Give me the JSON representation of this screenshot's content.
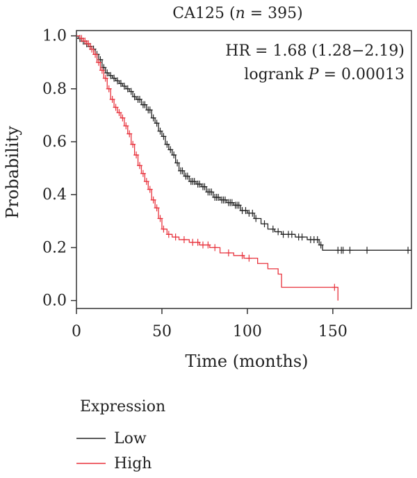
{
  "chart_data": {
    "type": "line",
    "title_prefix": "CA125 (",
    "title_n": "n",
    "title_suffix": " = 395)",
    "xlabel": "Time (months)",
    "ylabel": "Probability",
    "xlim": [
      0,
      196
    ],
    "ylim": [
      -0.03,
      1.02
    ],
    "xticks": [
      "0",
      "50",
      "100",
      "150"
    ],
    "xtick_values": [
      0,
      50,
      100,
      150
    ],
    "yticks": [
      "0.0",
      "0.2",
      "0.4",
      "0.6",
      "0.8",
      "1.0"
    ],
    "ytick_values": [
      0.0,
      0.2,
      0.4,
      0.6,
      0.8,
      1.0
    ],
    "annotation_hr": "HR = 1.68 (1.28−2.19)",
    "annotation_p_prefix": "logrank ",
    "annotation_p_italic": "P",
    "annotation_p_suffix": " = 0.00013",
    "legend_title": "Expression",
    "grid": false,
    "series": [
      {
        "name": "Low",
        "color": "#222222",
        "steps": [
          [
            0,
            1.0
          ],
          [
            1,
            0.99
          ],
          [
            3,
            0.98
          ],
          [
            5,
            0.97
          ],
          [
            7,
            0.96
          ],
          [
            9,
            0.95
          ],
          [
            11,
            0.93
          ],
          [
            13,
            0.91
          ],
          [
            15,
            0.88
          ],
          [
            17,
            0.86
          ],
          [
            19,
            0.85
          ],
          [
            21,
            0.84
          ],
          [
            23,
            0.83
          ],
          [
            25,
            0.82
          ],
          [
            27,
            0.81
          ],
          [
            29,
            0.8
          ],
          [
            31,
            0.79
          ],
          [
            33,
            0.77
          ],
          [
            35,
            0.76
          ],
          [
            38,
            0.74
          ],
          [
            41,
            0.72
          ],
          [
            44,
            0.69
          ],
          [
            46,
            0.67
          ],
          [
            48,
            0.64
          ],
          [
            50,
            0.62
          ],
          [
            52,
            0.59
          ],
          [
            54,
            0.57
          ],
          [
            56,
            0.55
          ],
          [
            58,
            0.52
          ],
          [
            60,
            0.49
          ],
          [
            63,
            0.47
          ],
          [
            66,
            0.45
          ],
          [
            70,
            0.44
          ],
          [
            73,
            0.43
          ],
          [
            76,
            0.41
          ],
          [
            80,
            0.39
          ],
          [
            84,
            0.38
          ],
          [
            88,
            0.37
          ],
          [
            92,
            0.36
          ],
          [
            96,
            0.34
          ],
          [
            100,
            0.33
          ],
          [
            104,
            0.31
          ],
          [
            108,
            0.29
          ],
          [
            112,
            0.27
          ],
          [
            116,
            0.26
          ],
          [
            120,
            0.25
          ],
          [
            128,
            0.24
          ],
          [
            135,
            0.23
          ],
          [
            142,
            0.21
          ],
          [
            144,
            0.19
          ],
          [
            196,
            0.19
          ]
        ],
        "censor_x": [
          2,
          4,
          6,
          8,
          10,
          12,
          14,
          16,
          18,
          20,
          22,
          24,
          26,
          28,
          30,
          32,
          34,
          36,
          37,
          39,
          40,
          42,
          43,
          45,
          47,
          49,
          51,
          53,
          55,
          57,
          59,
          61,
          62,
          64,
          65,
          67,
          68,
          69,
          71,
          72,
          74,
          75,
          77,
          78,
          79,
          81,
          82,
          83,
          85,
          86,
          87,
          89,
          90,
          91,
          93,
          94,
          95,
          97,
          99,
          101,
          103,
          105,
          110,
          115,
          118,
          121,
          124,
          126,
          130,
          132,
          137,
          139,
          141,
          143,
          153,
          155,
          156,
          160,
          170,
          194
        ]
      },
      {
        "name": "High",
        "color": "#e8323c",
        "steps": [
          [
            0,
            1.0
          ],
          [
            2,
            0.99
          ],
          [
            4,
            0.98
          ],
          [
            6,
            0.97
          ],
          [
            8,
            0.95
          ],
          [
            10,
            0.93
          ],
          [
            12,
            0.9
          ],
          [
            14,
            0.87
          ],
          [
            16,
            0.84
          ],
          [
            18,
            0.8
          ],
          [
            20,
            0.76
          ],
          [
            22,
            0.73
          ],
          [
            24,
            0.71
          ],
          [
            26,
            0.69
          ],
          [
            28,
            0.66
          ],
          [
            30,
            0.63
          ],
          [
            32,
            0.59
          ],
          [
            34,
            0.55
          ],
          [
            36,
            0.51
          ],
          [
            38,
            0.48
          ],
          [
            40,
            0.45
          ],
          [
            42,
            0.42
          ],
          [
            44,
            0.38
          ],
          [
            46,
            0.35
          ],
          [
            48,
            0.31
          ],
          [
            50,
            0.27
          ],
          [
            53,
            0.25
          ],
          [
            56,
            0.24
          ],
          [
            60,
            0.23
          ],
          [
            66,
            0.22
          ],
          [
            72,
            0.21
          ],
          [
            78,
            0.2
          ],
          [
            84,
            0.18
          ],
          [
            92,
            0.17
          ],
          [
            98,
            0.16
          ],
          [
            106,
            0.14
          ],
          [
            112,
            0.12
          ],
          [
            118,
            0.1
          ],
          [
            120,
            0.05
          ],
          [
            153,
            0.05
          ],
          [
            153,
            0.0
          ]
        ],
        "censor_x": [
          3,
          5,
          7,
          9,
          11,
          13,
          15,
          17,
          19,
          21,
          23,
          25,
          27,
          29,
          31,
          33,
          35,
          37,
          39,
          41,
          43,
          45,
          47,
          49,
          51,
          54,
          58,
          63,
          68,
          71,
          74,
          77,
          81,
          89,
          97,
          101,
          151
        ]
      }
    ]
  }
}
